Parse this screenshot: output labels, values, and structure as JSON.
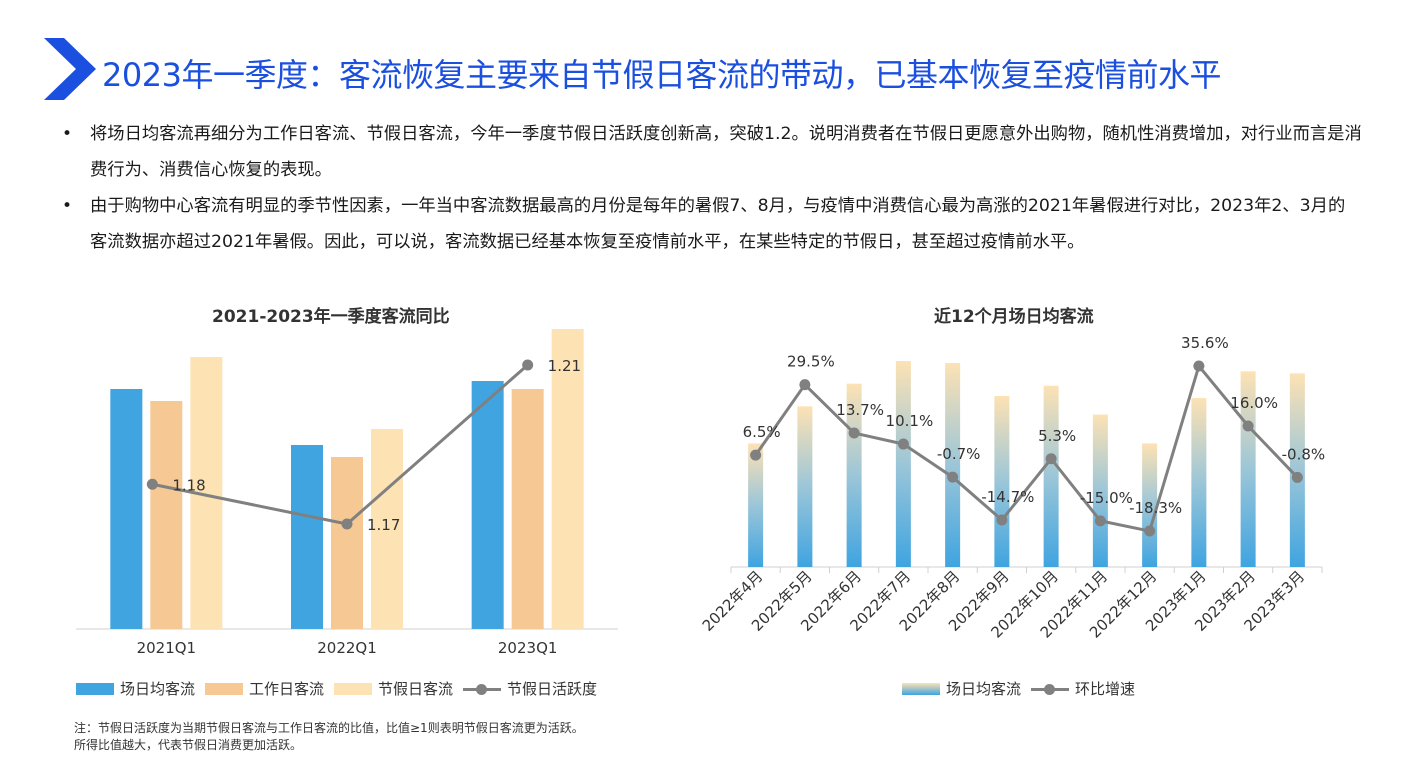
{
  "header": {
    "title": "2023年一季度：客流恢复主要来自节假日客流的带动，已基本恢复至疫情前水平"
  },
  "bullets": [
    "将场日均客流再细分为工作日客流、节假日客流，今年一季度节假日活跃度创新高，突破1.2。说明消费者在节假日更愿意外出购物，随机性消费增加，对行业而言是消费行为、消费信心恢复的表现。",
    "由于购物中心客流有明显的季节性因素，一年当中客流数据最高的月份是每年的暑假7、8月，与疫情中消费信心最为高涨的2021年暑假进行对比，2023年2、3月的客流数据亦超过2021年暑假。因此，可以说，客流数据已经基本恢复至疫情前水平，在某些特定的节假日，甚至超过疫情前水平。"
  ],
  "bullet_symbol": "•",
  "footnote": {
    "line1": "注：节假日活跃度为当期节假日客流与工作日客流的比值，比值≥1则表明节假日客流更为活跃。",
    "line2": "所得比值越大，代表节假日消费更加活跃。"
  },
  "colors": {
    "title_blue": "#1a4fe0",
    "bar_blue": "#3fa4e0",
    "bar_orange": "#f5c894",
    "bar_cream": "#fde2b4",
    "line_gray": "#808080"
  },
  "chart_data": [
    {
      "type": "bar",
      "title": "2021-2023年一季度客流同比",
      "categories": [
        "2021Q1",
        "2022Q1",
        "2023Q1"
      ],
      "series": [
        {
          "name": "场日均客流",
          "values": [
            0.6,
            0.46,
            0.62
          ],
          "color": "#3fa4e0"
        },
        {
          "name": "工作日客流",
          "values": [
            0.57,
            0.43,
            0.6
          ],
          "color": "#f5c894"
        },
        {
          "name": "节假日客流",
          "values": [
            0.68,
            0.5,
            0.75
          ],
          "color": "#fde2b4"
        }
      ],
      "line_series": {
        "name": "节假日活跃度",
        "values": [
          1.18,
          1.17,
          1.21
        ],
        "labels": [
          "1.18",
          "1.17",
          "1.21"
        ]
      },
      "legend": "bottom"
    },
    {
      "type": "bar",
      "title": "近12个月场日均客流",
      "categories": [
        "2022年4月",
        "2022年5月",
        "2022年6月",
        "2022年7月",
        "2022年8月",
        "2022年9月",
        "2022年10月",
        "2022年11月",
        "2022年12月",
        "2023年1月",
        "2023年2月",
        "2023年3月"
      ],
      "series": [
        {
          "name": "场日均客流",
          "values": [
            0.6,
            0.78,
            0.89,
            1.0,
            0.99,
            0.83,
            0.88,
            0.74,
            0.6,
            0.82,
            0.95,
            0.94
          ]
        }
      ],
      "line_series": {
        "name": "环比增速",
        "values": [
          6.5,
          29.5,
          13.7,
          10.1,
          -0.7,
          -14.7,
          5.3,
          -15.0,
          -18.3,
          35.6,
          16.0,
          -0.8
        ],
        "labels": [
          "6.5%",
          "29.5%",
          "13.7%",
          "10.1%",
          "-0.7%",
          "-14.7%",
          "5.3%",
          "-15.0%",
          "-18.3%",
          "35.6%",
          "16.0%",
          "-0.8%"
        ]
      },
      "legend": "bottom"
    }
  ]
}
